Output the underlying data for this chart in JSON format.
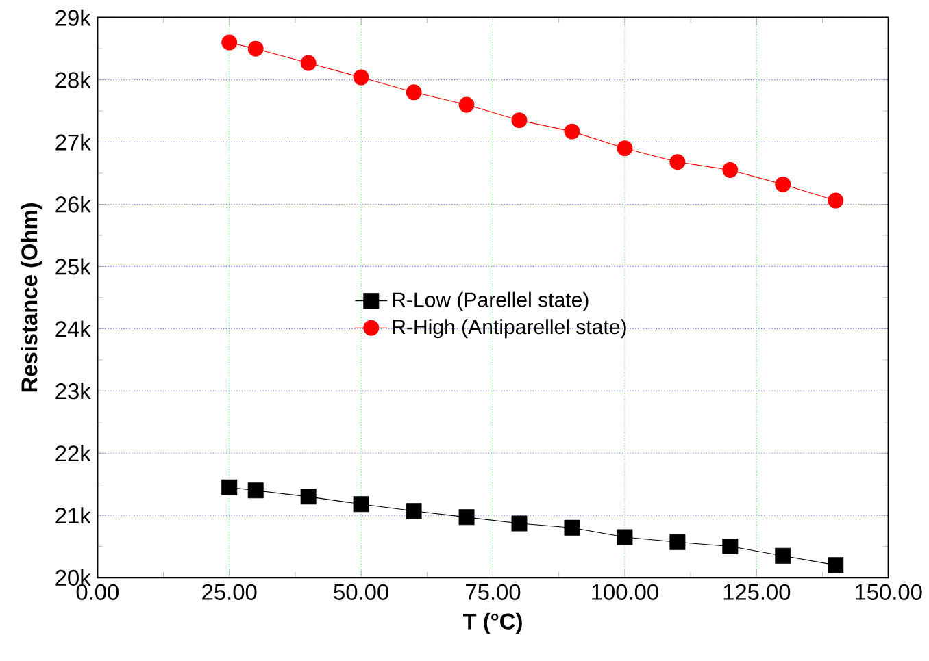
{
  "chart_data": {
    "type": "line",
    "xlabel": "T (°C)",
    "ylabel": "Resistance (Ohm)",
    "x": [
      25,
      30,
      40,
      50,
      60,
      70,
      80,
      90,
      100,
      110,
      120,
      130,
      140
    ],
    "series": [
      {
        "name": "R-Low (Parellel state)",
        "color": "#000000",
        "marker": "square",
        "values": [
          21450,
          21400,
          21300,
          21180,
          21070,
          20970,
          20870,
          20800,
          20650,
          20570,
          20500,
          20350,
          20200
        ]
      },
      {
        "name": "R-High (Antiparellel state)",
        "color": "#ff0000",
        "marker": "circle",
        "values": [
          28600,
          28500,
          28270,
          28040,
          27800,
          27600,
          27350,
          27170,
          26900,
          26680,
          26550,
          26320,
          26060
        ]
      }
    ],
    "xlim": [
      0,
      150
    ],
    "ylim": [
      20000,
      29000
    ],
    "xticks": [
      {
        "value": 0,
        "label": "0.00"
      },
      {
        "value": 25,
        "label": "25.00"
      },
      {
        "value": 50,
        "label": "50.00"
      },
      {
        "value": 75,
        "label": "75.00"
      },
      {
        "value": 100,
        "label": "100.00"
      },
      {
        "value": 125,
        "label": "125.00"
      },
      {
        "value": 150,
        "label": "150.00"
      }
    ],
    "yticks": [
      {
        "value": 20000,
        "label": "20k"
      },
      {
        "value": 21000,
        "label": "21k"
      },
      {
        "value": 22000,
        "label": "22k"
      },
      {
        "value": 23000,
        "label": "23k"
      },
      {
        "value": 24000,
        "label": "24k"
      },
      {
        "value": 25000,
        "label": "25k"
      },
      {
        "value": 26000,
        "label": "26k"
      },
      {
        "value": 27000,
        "label": "27k"
      },
      {
        "value": 28000,
        "label": "28k"
      },
      {
        "value": 29000,
        "label": "29k"
      }
    ],
    "grid": true,
    "legend": "center",
    "line_style": "solid"
  }
}
